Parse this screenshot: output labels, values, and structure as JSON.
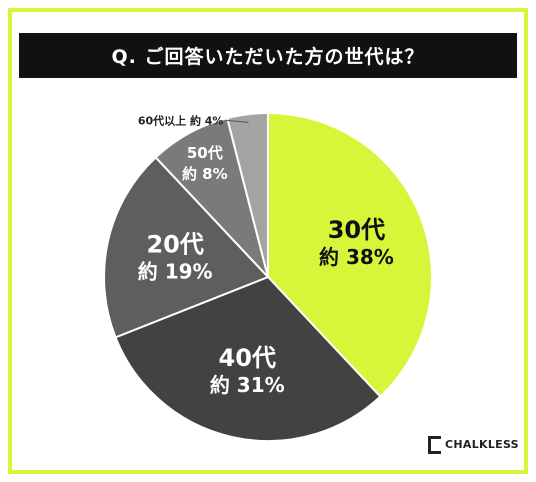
{
  "question": "Q. ご回答いただいた方の世代は？",
  "brand": "CHALKLESS",
  "chart_data": {
    "type": "pie",
    "title": "Q. ご回答いただいた方の世代は？",
    "start_angle_deg": 0,
    "direction": "clockwise",
    "slices": [
      {
        "category": "30代",
        "value_label": "約 38%",
        "value": 38,
        "color": "#d8f53a",
        "text_color": "#111111"
      },
      {
        "category": "40代",
        "value_label": "約 31%",
        "value": 31,
        "color": "#424242",
        "text_color": "#ffffff"
      },
      {
        "category": "20代",
        "value_label": "約 19%",
        "value": 19,
        "color": "#5e5e5e",
        "text_color": "#ffffff"
      },
      {
        "category": "50代",
        "value_label": "約 8%",
        "value": 8,
        "color": "#7a7a7a",
        "text_color": "#ffffff"
      },
      {
        "category": "60代以上",
        "value_label": "約 4%",
        "value": 4,
        "color": "#a3a3a3",
        "text_color": "#222222"
      }
    ]
  }
}
